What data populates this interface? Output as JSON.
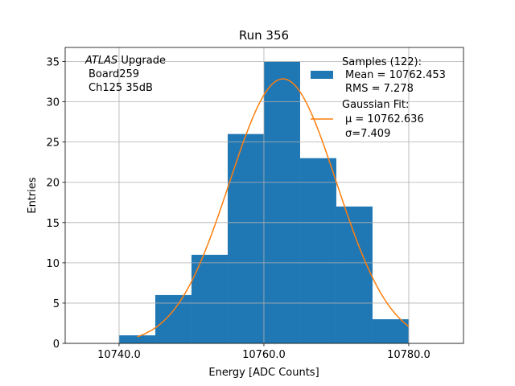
{
  "chart_data": {
    "type": "bar",
    "title": "Run 356",
    "xlabel": "Energy [ADC Counts]",
    "ylabel": "Entries",
    "xlim": [
      10732.56,
      10787.56
    ],
    "ylim": [
      0,
      36.75
    ],
    "grid": true,
    "bin_edges": [
      10740,
      10745,
      10750,
      10755,
      10760,
      10765,
      10770,
      10775,
      10780
    ],
    "values": [
      1,
      6,
      11,
      26,
      35,
      23,
      17,
      3
    ],
    "xticks": [
      10740,
      10760,
      10780
    ],
    "xtick_labels": [
      "10740.0",
      "10760.0",
      "10780.0"
    ],
    "yticks": [
      0,
      5,
      10,
      15,
      20,
      25,
      30,
      35
    ],
    "ytick_labels": [
      "0",
      "5",
      "10",
      "15",
      "20",
      "25",
      "30",
      "35"
    ],
    "fit": {
      "amplitude": 32.85,
      "mu": 10762.636,
      "sigma": 7.409,
      "x_range": [
        10742.5,
        10780
      ]
    },
    "colors": {
      "bars": "#1f77b4",
      "fit": "#ff7f0e"
    },
    "annotation": {
      "italic": "ATLAS",
      "rest": " Upgrade",
      "line2": "Board259",
      "line3": "Ch125 35dB"
    },
    "legend": {
      "placement": "top-right",
      "samples": {
        "line1": "Samples (122):",
        "line2": "Mean = 10762.453",
        "line3": "RMS = 7.278"
      },
      "fit": {
        "line1": "Gaussian Fit:",
        "line2": "μ = 10762.636",
        "line3": "σ=7.409"
      }
    }
  }
}
